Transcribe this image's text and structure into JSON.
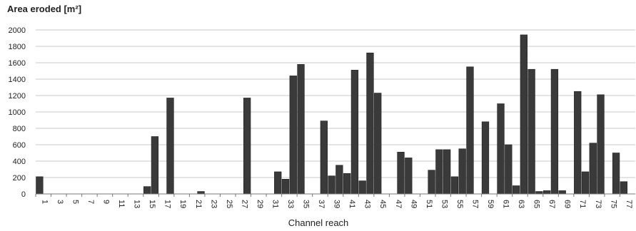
{
  "chart_data": {
    "type": "bar",
    "ylabel": "Area eroded [m²]",
    "xlabel": "Channel reach",
    "ylim": [
      0,
      2000
    ],
    "yticks": [
      0,
      200,
      400,
      600,
      800,
      1000,
      1200,
      1400,
      1600,
      1800,
      2000
    ],
    "grid": "horizontal",
    "bar_color": "#3a3a3a",
    "categories": [
      "1",
      "2",
      "3",
      "4",
      "5",
      "6",
      "7",
      "8",
      "9",
      "10",
      "11",
      "12",
      "13",
      "14",
      "15",
      "16",
      "17",
      "18",
      "19",
      "20",
      "21",
      "22",
      "23",
      "24",
      "25",
      "26",
      "27",
      "28",
      "29",
      "30",
      "31",
      "32",
      "33",
      "34",
      "35",
      "36",
      "37",
      "38",
      "39",
      "40",
      "41",
      "42",
      "43",
      "44",
      "45",
      "46",
      "47",
      "48",
      "49",
      "50",
      "51",
      "52",
      "53",
      "54",
      "55",
      "56",
      "57",
      "58",
      "59",
      "60",
      "61",
      "62",
      "63",
      "64",
      "65",
      "66",
      "67",
      "68",
      "69",
      "70",
      "71",
      "72",
      "73",
      "74",
      "75",
      "76",
      "77",
      "78"
    ],
    "tick_labels": [
      "1",
      "3",
      "5",
      "7",
      "9",
      "11",
      "13",
      "15",
      "17",
      "19",
      "21",
      "23",
      "25",
      "27",
      "29",
      "31",
      "33",
      "35",
      "37",
      "39",
      "41",
      "43",
      "45",
      "47",
      "49",
      "51",
      "53",
      "55",
      "57",
      "59",
      "61",
      "63",
      "65",
      "67",
      "69",
      "71",
      "73",
      "75",
      "77"
    ],
    "values": [
      210,
      0,
      0,
      0,
      0,
      0,
      0,
      0,
      0,
      0,
      0,
      0,
      0,
      0,
      90,
      700,
      0,
      1170,
      0,
      0,
      0,
      30,
      0,
      0,
      0,
      0,
      0,
      1170,
      0,
      0,
      0,
      270,
      180,
      1440,
      1580,
      0,
      0,
      890,
      220,
      350,
      250,
      1510,
      160,
      1720,
      1230,
      0,
      0,
      510,
      440,
      0,
      0,
      290,
      540,
      540,
      210,
      550,
      1550,
      0,
      880,
      0,
      1100,
      600,
      100,
      1940,
      1520,
      30,
      40,
      1520,
      40,
      0,
      1250,
      270,
      620,
      1210,
      0,
      500,
      150,
      0
    ]
  }
}
